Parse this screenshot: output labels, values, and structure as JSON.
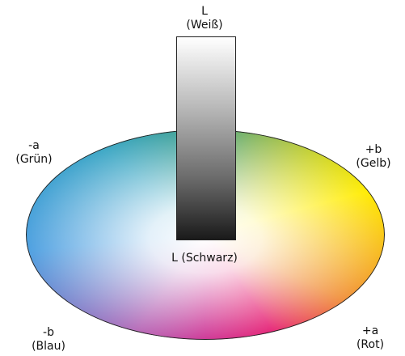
{
  "lightness_top": {
    "symbol": "L",
    "name": "(Weiß)"
  },
  "lightness_bottom": "L (Schwarz)",
  "minus_a": {
    "symbol": "-a",
    "name": "(Grün)"
  },
  "plus_b": {
    "symbol": "+b",
    "name": "(Gelb)"
  },
  "minus_b": {
    "symbol": "-b",
    "name": "(Blau)"
  },
  "plus_a": {
    "symbol": "+a",
    "name": "(Rot)"
  }
}
